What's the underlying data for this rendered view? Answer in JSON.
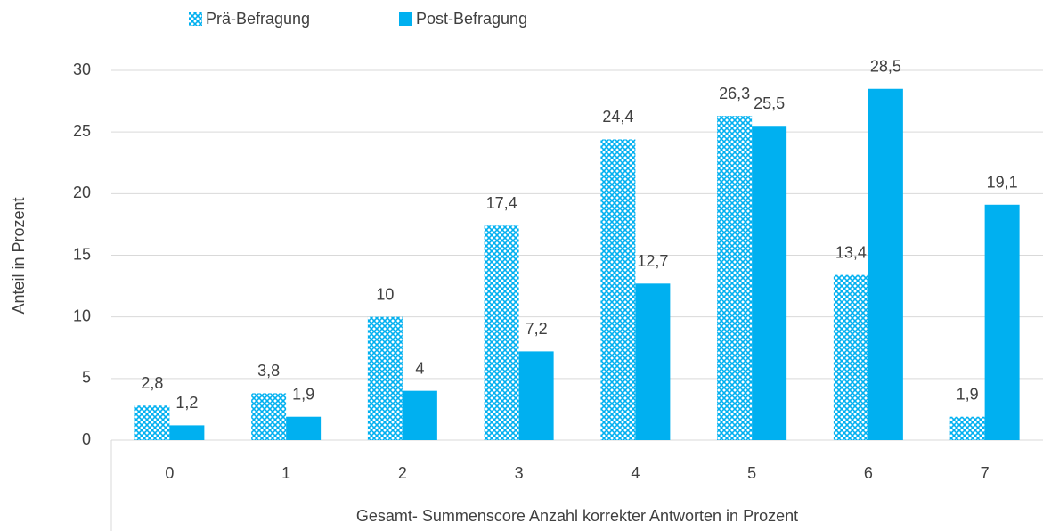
{
  "chart_data": {
    "type": "bar",
    "categories": [
      "0",
      "1",
      "2",
      "3",
      "4",
      "5",
      "6",
      "7"
    ],
    "series": [
      {
        "name": "Prä-Befragung",
        "color": "#00b0f0",
        "pattern": true,
        "values": [
          2.8,
          3.8,
          10,
          17.4,
          24.4,
          26.3,
          13.4,
          1.9
        ],
        "value_labels": [
          "2,8",
          "3,8",
          "10",
          "17,4",
          "24,4",
          "26,3",
          "13,4",
          "1,9"
        ]
      },
      {
        "name": "Post-Befragung",
        "color": "#00b0f0",
        "pattern": false,
        "values": [
          1.2,
          1.9,
          4,
          7.2,
          12.7,
          25.5,
          28.5,
          19.1
        ],
        "value_labels": [
          "1,2",
          "1,9",
          "4",
          "7,2",
          "12,7",
          "25,5",
          "28,5",
          "19,1"
        ]
      }
    ],
    "xlabel": "Gesamt- Summenscore Anzahl korrekter Antworten in Prozent",
    "ylabel": "Anteil in Prozent",
    "ylim": [
      0,
      30
    ],
    "yticks": [
      0,
      5,
      10,
      15,
      20,
      25,
      30
    ],
    "grid": true,
    "legend": "top"
  }
}
